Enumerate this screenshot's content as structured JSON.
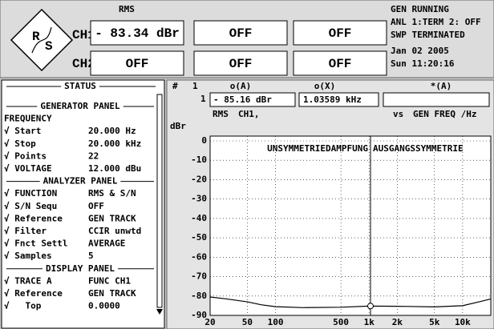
{
  "header": {
    "logo": [
      "R",
      "S"
    ],
    "function": "RMS",
    "channels": [
      "CH1",
      "CH2"
    ],
    "displays": [
      [
        "- 83.34 dBr",
        "OFF"
      ],
      [
        "OFF",
        "OFF"
      ],
      [
        "OFF",
        "OFF"
      ]
    ],
    "status": [
      "GEN RUNNING",
      "ANL 1:TERM 2: OFF",
      "SWP TERMINATED",
      "Jan 02 2005",
      "Sun 11:20:16"
    ]
  },
  "status_panel": {
    "title": "STATUS",
    "items": [
      {
        "section": "GENERATOR PANEL"
      },
      {
        "label": "FREQUENCY"
      },
      {
        "label": "√ Start",
        "value": "20.000 Hz"
      },
      {
        "label": "√ Stop",
        "value": "20.000 kHz"
      },
      {
        "label": "√ Points",
        "value": "22"
      },
      {
        "label": "√ VOLTAGE",
        "value": "12.000 dBu"
      },
      {
        "section": "ANALYZER PANEL"
      },
      {
        "label": "√ FUNCTION",
        "value": "RMS & S/N"
      },
      {
        "label": "√ S/N Sequ",
        "value": "OFF"
      },
      {
        "label": "√ Reference",
        "value": "GEN TRACK"
      },
      {
        "label": "√ Filter",
        "value": "CCIR unwtd"
      },
      {
        "label": "√ Fnct Settl",
        "value": "AVERAGE"
      },
      {
        "label": "√ Samples",
        "value": "5"
      },
      {
        "section": "DISPLAY PANEL"
      },
      {
        "label": "√ TRACE A",
        "value": "FUNC CH1"
      },
      {
        "label": "√ Reference",
        "value": "GEN TRACK"
      },
      {
        "label": "√   Top",
        "value": "0.0000"
      }
    ]
  },
  "graph": {
    "header": [
      "#",
      "1",
      "o(A)",
      "o(X)",
      "*(A)"
    ],
    "row_label": "1",
    "axis_row": [
      "RMS",
      "CH1,",
      "vs"
    ]
  },
  "chart_data": {
    "type": "line",
    "ylabel": "dBr",
    "xlabel": "GEN FREQ /Hz",
    "annotations": [
      "UNSYMMETRIEDAMPFUNG",
      "AUSGANGSSYMMETRIE"
    ],
    "x": [
      20,
      30,
      50,
      70,
      100,
      200,
      500,
      1000,
      2000,
      5000,
      10000,
      15000,
      20000
    ],
    "series": [
      {
        "color": "#000000",
        "values": [
          -80.5,
          -81.5,
          -83,
          -84.5,
          -85.5,
          -86,
          -85.8,
          -85.2,
          -85.3,
          -85.6,
          -85,
          -83,
          -81.5
        ]
      }
    ],
    "cursor": {
      "x": 1035.89,
      "y": -85.16,
      "x_label": "1.03589 kHz",
      "y_label": "- 85.16 dBr"
    },
    "xlim": [
      20,
      20000
    ],
    "xscale": "log",
    "xticks": [
      20,
      50,
      100,
      500,
      {
        "value": 1000,
        "label": "1k"
      },
      {
        "value": 2000,
        "label": "2k"
      },
      {
        "value": 5000,
        "label": "5k"
      },
      {
        "value": 10000,
        "label": "10k"
      }
    ],
    "ylim": [
      -90,
      0
    ],
    "yticks": [
      0,
      -10,
      -20,
      -30,
      -40,
      -50,
      -60,
      -70,
      -80,
      -90
    ],
    "grid": true
  }
}
